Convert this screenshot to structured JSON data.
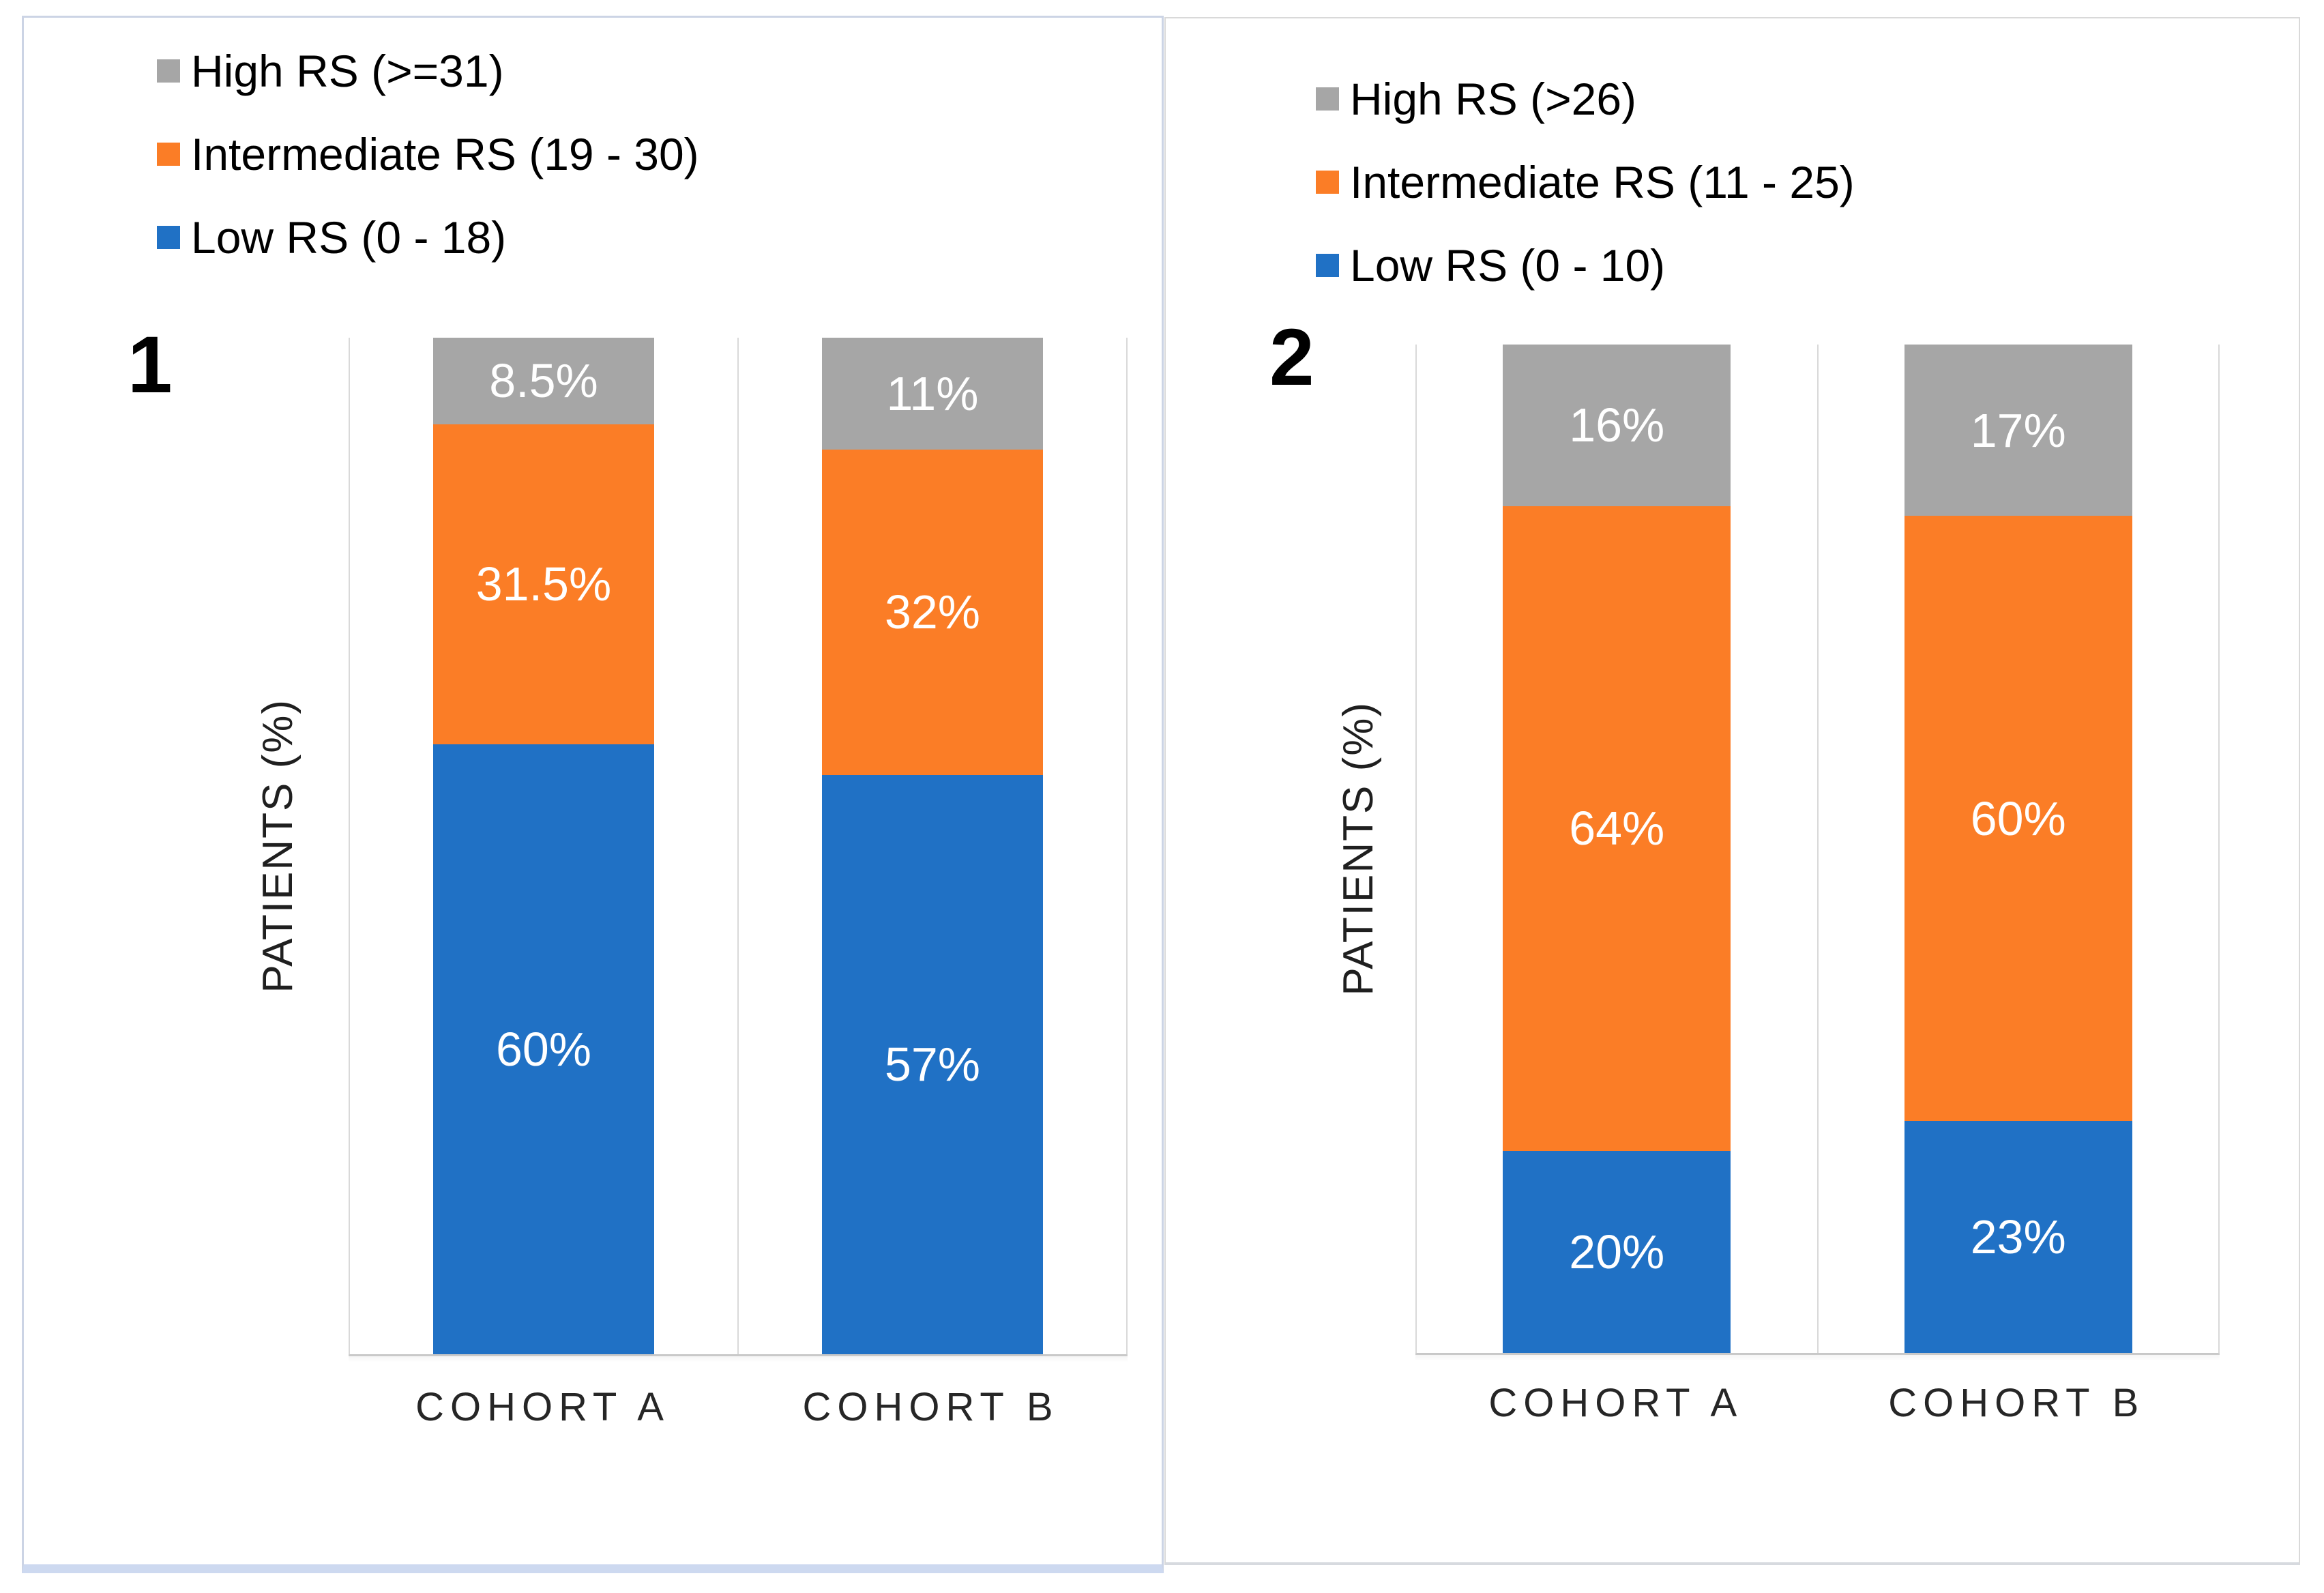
{
  "colors": {
    "low_rs_blue": "#2071C5",
    "intermediate_rs_orange": "#FB7D26",
    "high_rs_gray": "#A6A6A6",
    "axis_line": "#D9D9D9",
    "panel1_border": "#CCD4E5",
    "panel1_bottom_border": "#CDD9F0",
    "panel2_border": "#D9D9D9",
    "label_text_on_bar": "#FFFFFF"
  },
  "chart_data": [
    {
      "type": "bar",
      "stacked": true,
      "panel_label": "1",
      "title": "",
      "xlabel": "",
      "ylabel": "PATIENTS (%)",
      "ylim": [
        0,
        100
      ],
      "grid": false,
      "legend_position": "top-left",
      "categories": [
        "COHORT A",
        "COHORT B"
      ],
      "series": [
        {
          "name": "Low RS (0 - 18)",
          "color": "#2071C5",
          "values": [
            60,
            57
          ],
          "labels": [
            "60%",
            "57%"
          ]
        },
        {
          "name": "Intermediate RS (19 - 30)",
          "color": "#FB7D26",
          "values": [
            31.5,
            32
          ],
          "labels": [
            "31.5%",
            "32%"
          ]
        },
        {
          "name": "High RS (>=31)",
          "color": "#A6A6A6",
          "values": [
            8.5,
            11
          ],
          "labels": [
            "8.5%",
            "11%"
          ]
        }
      ]
    },
    {
      "type": "bar",
      "stacked": true,
      "panel_label": "2",
      "title": "",
      "xlabel": "",
      "ylabel": "PATIENTS (%)",
      "ylim": [
        0,
        100
      ],
      "grid": false,
      "legend_position": "top-left",
      "categories": [
        "COHORT A",
        "COHORT B"
      ],
      "series": [
        {
          "name": "Low RS (0 - 10)",
          "color": "#2071C5",
          "values": [
            20,
            23
          ],
          "labels": [
            "20%",
            "23%"
          ]
        },
        {
          "name": "Intermediate RS (11 - 25)",
          "color": "#FB7D26",
          "values": [
            64,
            60
          ],
          "labels": [
            "64%",
            "60%"
          ]
        },
        {
          "name": "High RS (>26)",
          "color": "#A6A6A6",
          "values": [
            16,
            17
          ],
          "labels": [
            "16%",
            "17%"
          ]
        }
      ]
    }
  ]
}
